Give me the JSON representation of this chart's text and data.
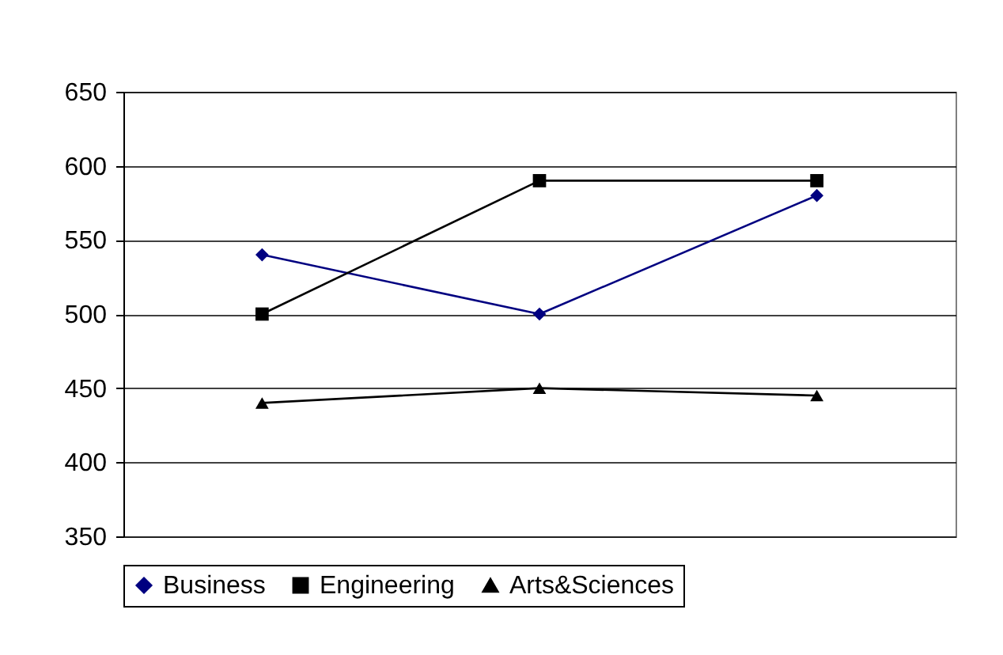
{
  "chart_data": {
    "type": "line",
    "categories": [
      null,
      null,
      null
    ],
    "series": [
      {
        "name": "Business",
        "color": "#000080",
        "marker": "diamond",
        "values": [
          540,
          500,
          580
        ]
      },
      {
        "name": "Engineering",
        "color": "#000000",
        "marker": "square",
        "values": [
          500,
          590,
          590
        ]
      },
      {
        "name": "Arts&Sciences",
        "color": "#000000",
        "marker": "triangle",
        "values": [
          440,
          450,
          445
        ]
      }
    ],
    "ylim": [
      350,
      650
    ],
    "yticks": [
      350,
      400,
      450,
      500,
      550,
      600,
      650
    ],
    "grid": "y",
    "legend": "bottom",
    "tick_labels": "y",
    "line_style": "solid"
  }
}
